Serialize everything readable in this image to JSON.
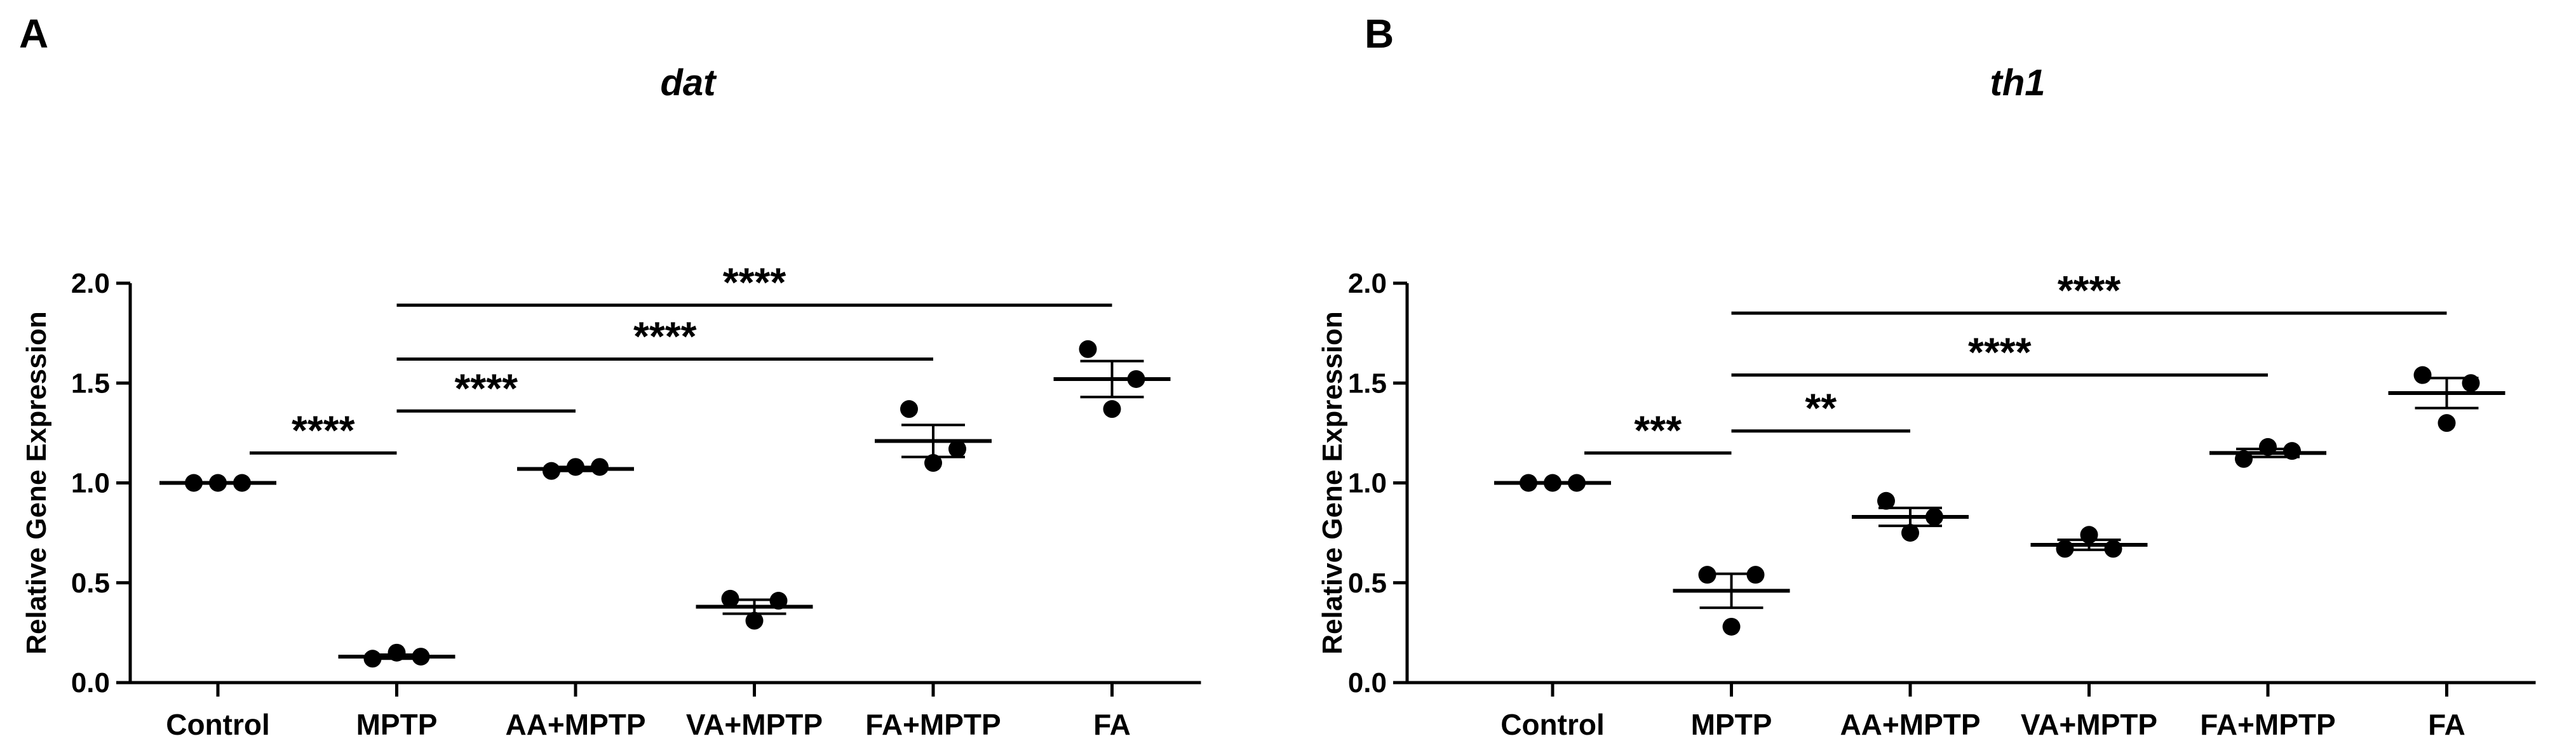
{
  "chart_data": [
    {
      "panel": "A",
      "type": "scatter",
      "title": "dat",
      "xlabel": "",
      "ylabel": "Relative Gene Expression",
      "ylim": [
        0,
        2.0
      ],
      "yticks": [
        "0.0",
        "0.5",
        "1.0",
        "1.5",
        "2.0"
      ],
      "categories": [
        "Control",
        "MPTP",
        "AA+MPTP",
        "VA+MPTP",
        "FA+MPTP",
        "FA"
      ],
      "points": [
        [
          1.0,
          1.0,
          1.0
        ],
        [
          0.12,
          0.15,
          0.13
        ],
        [
          1.06,
          1.08,
          1.08
        ],
        [
          0.42,
          0.31,
          0.41
        ],
        [
          1.37,
          1.1,
          1.17
        ],
        [
          1.67,
          1.37,
          1.52
        ]
      ],
      "means": [
        1.0,
        0.13,
        1.07,
        0.38,
        1.21,
        1.52
      ],
      "sem": [
        0.0,
        0.01,
        0.01,
        0.035,
        0.08,
        0.09
      ],
      "significance": [
        {
          "from": 0,
          "to": 1,
          "label": "****",
          "y": 1.15
        },
        {
          "from": 1,
          "to": 2,
          "label": "****",
          "y": 1.36
        },
        {
          "from": 1,
          "to": 4,
          "label": "****",
          "y": 1.62
        },
        {
          "from": 1,
          "to": 5,
          "label": "****",
          "y": 1.89
        }
      ]
    },
    {
      "panel": "B",
      "type": "scatter",
      "title": "th1",
      "xlabel": "",
      "ylabel": "Relative Gene Expression",
      "ylim": [
        0,
        2.0
      ],
      "yticks": [
        "0.0",
        "0.5",
        "1.0",
        "1.5",
        "2.0"
      ],
      "categories": [
        "Control",
        "MPTP",
        "AA+MPTP",
        "VA+MPTP",
        "FA+MPTP",
        "FA"
      ],
      "points": [
        [
          1.0,
          1.0,
          1.0
        ],
        [
          0.54,
          0.28,
          0.54
        ],
        [
          0.91,
          0.75,
          0.83
        ],
        [
          0.67,
          0.74,
          0.67
        ],
        [
          1.12,
          1.18,
          1.16
        ],
        [
          1.54,
          1.3,
          1.5
        ]
      ],
      "means": [
        1.0,
        0.46,
        0.83,
        0.69,
        1.15,
        1.45
      ],
      "sem": [
        0.0,
        0.085,
        0.045,
        0.025,
        0.02,
        0.075
      ],
      "significance": [
        {
          "from": 0,
          "to": 1,
          "label": "***",
          "y": 1.15
        },
        {
          "from": 1,
          "to": 2,
          "label": "**",
          "y": 1.26
        },
        {
          "from": 1,
          "to": 4,
          "label": "****",
          "y": 1.54
        },
        {
          "from": 1,
          "to": 5,
          "label": "****",
          "y": 1.85
        }
      ]
    }
  ]
}
